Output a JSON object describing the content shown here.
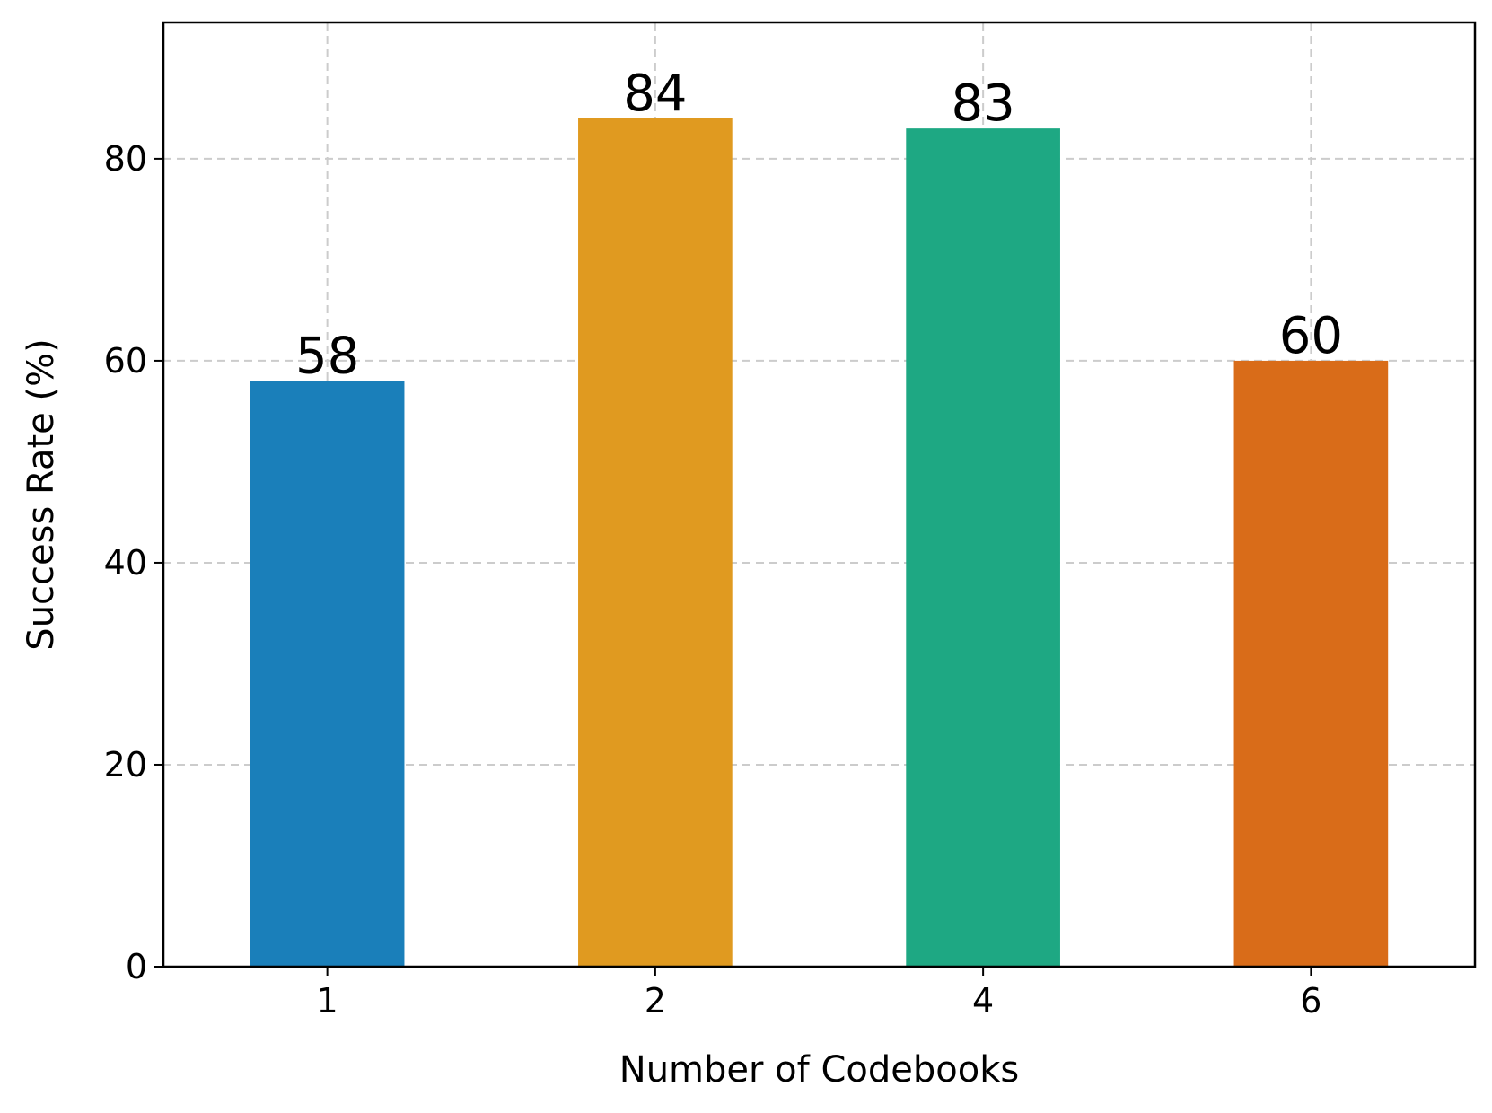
{
  "chart_data": {
    "type": "bar",
    "categories": [
      "1",
      "2",
      "4",
      "6"
    ],
    "values": [
      58,
      84,
      83,
      60
    ],
    "data_labels": [
      "58",
      "84",
      "83",
      "60"
    ],
    "colors": [
      "#1a7fba",
      "#e09a20",
      "#1ea883",
      "#d96c19"
    ],
    "title": "",
    "xlabel": "Number of Codebooks",
    "ylabel": "Success Rate (%)",
    "ylim": [
      0,
      93.5
    ],
    "yticks": [
      0,
      20,
      40,
      60,
      80
    ],
    "ytick_labels": [
      "0",
      "20",
      "40",
      "60",
      "80"
    ],
    "grid": true
  }
}
